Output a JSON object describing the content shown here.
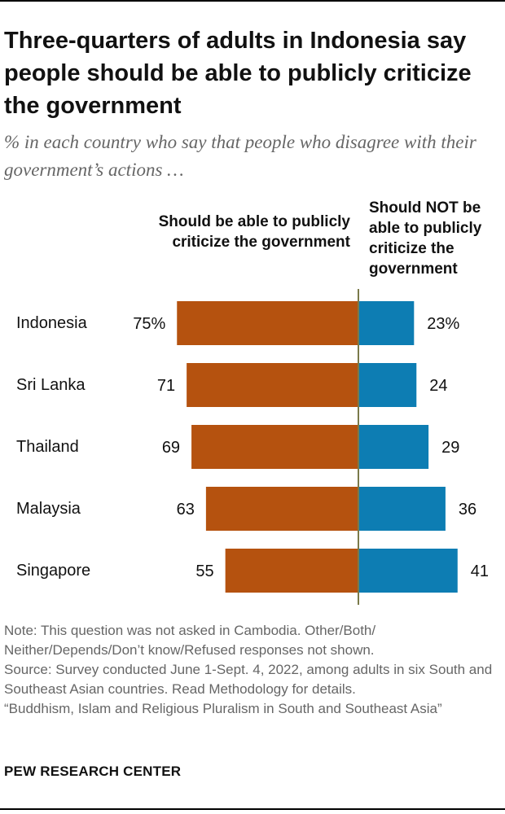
{
  "title": "Three-quarters of adults in Indonesia say people should be able to publicly criticize the government",
  "subtitle": "% in each country who say that people who disagree with their government’s actions …",
  "colors": {
    "should": "#b5520f",
    "should_not": "#0d7db3",
    "divider": "#7a7a4a"
  },
  "chart_data": {
    "type": "bar",
    "orientation": "diverging-horizontal",
    "categories": [
      "Indonesia",
      "Sri Lanka",
      "Thailand",
      "Malaysia",
      "Singapore"
    ],
    "series": [
      {
        "name": "Should be able to publicly criticize the government",
        "values": [
          75,
          71,
          69,
          63,
          55
        ],
        "labels": [
          "75%",
          "71",
          "69",
          "63",
          "55"
        ],
        "color": "#b5520f"
      },
      {
        "name": "Should NOT be able to publicly criticize the government",
        "values": [
          23,
          24,
          29,
          36,
          41
        ],
        "labels": [
          "23%",
          "24",
          "29",
          "36",
          "41"
        ],
        "color": "#0d7db3"
      }
    ],
    "column_headers": {
      "left": "Should be able to publicly criticize the government",
      "right": "Should NOT be able to publicly criticize the government"
    },
    "units": "%"
  },
  "notes": [
    "Note: This question was not asked in Cambodia. Other/Both/ Neither/Depends/Don’t know/Refused responses not shown.",
    "Source: Survey conducted June 1-Sept. 4, 2022, among adults in six South and Southeast Asian countries. Read Methodology for details.",
    "“Buddhism, Islam and Religious Pluralism in South and Southeast Asia”"
  ],
  "brand": "PEW RESEARCH CENTER"
}
